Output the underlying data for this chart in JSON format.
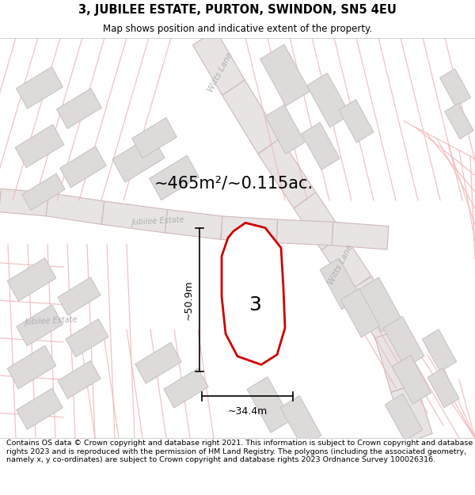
{
  "title": "3, JUBILEE ESTATE, PURTON, SWINDON, SN5 4EU",
  "subtitle": "Map shows position and indicative extent of the property.",
  "area_text": "~465m²/~0.115ac.",
  "label_3": "3",
  "dim_height": "~50.9m",
  "dim_width": "~34.4m",
  "footer": "Contains OS data © Crown copyright and database right 2021. This information is subject to Crown copyright and database rights 2023 and is reproduced with the permission of HM Land Registry. The polygons (including the associated geometry, namely x, y co-ordinates) are subject to Crown copyright and database rights 2023 Ordnance Survey 100026316.",
  "bg_color": "#faf8f8",
  "road_fill": "#e8e4e4",
  "road_edge": "#d0c0c0",
  "building_fill": "#dddada",
  "building_edge": "#c8c0c0",
  "pink": "#f0b8b8",
  "plot_color": "#cc0000",
  "title_fontsize": 10.5,
  "subtitle_fontsize": 8.5,
  "footer_fontsize": 6.8,
  "area_fontsize": 15,
  "label_fontsize": 18,
  "dim_fontsize": 9
}
